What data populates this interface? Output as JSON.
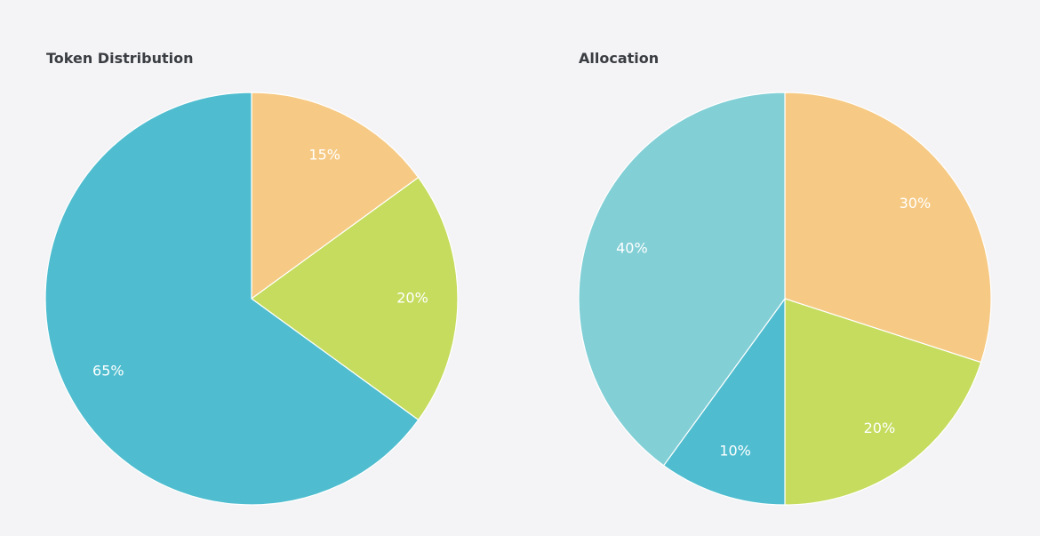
{
  "chart_data": [
    {
      "type": "pie",
      "title": "Token Distribution",
      "slices": [
        {
          "label": "15%",
          "value": 15,
          "color": "#f6ca85"
        },
        {
          "label": "20%",
          "value": 20,
          "color": "#c5dc5e"
        },
        {
          "label": "65%",
          "value": 65,
          "color": "#4fbdcf"
        }
      ],
      "start_angle_deg": 0,
      "direction": "clockwise",
      "legend": "none"
    },
    {
      "type": "pie",
      "title": "Allocation",
      "slices": [
        {
          "label": "30%",
          "value": 30,
          "color": "#f6ca85"
        },
        {
          "label": "20%",
          "value": 20,
          "color": "#c5dc5e"
        },
        {
          "label": "10%",
          "value": 10,
          "color": "#4fbdcf"
        },
        {
          "label": "40%",
          "value": 40,
          "color": "#82cfd6"
        }
      ],
      "start_angle_deg": 0,
      "direction": "clockwise",
      "legend": "none"
    }
  ]
}
